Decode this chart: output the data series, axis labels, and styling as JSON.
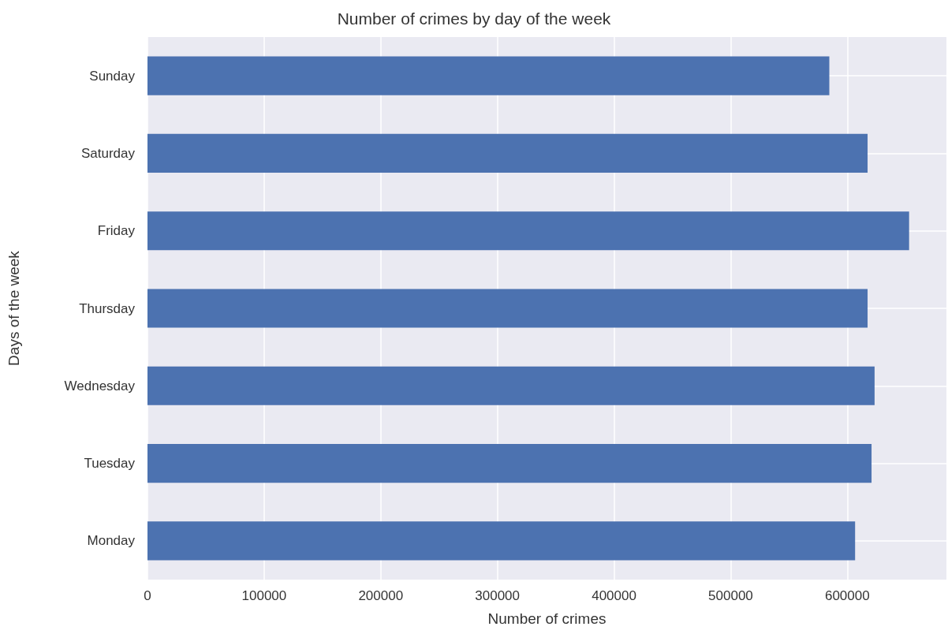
{
  "chart_data": {
    "type": "bar",
    "orientation": "horizontal",
    "title": "Number of crimes by day of the week",
    "xlabel": "Number of crimes",
    "ylabel": "Days of the week",
    "categories": [
      "Sunday",
      "Saturday",
      "Friday",
      "Thursday",
      "Wednesday",
      "Tuesday",
      "Monday"
    ],
    "values": [
      584600,
      617400,
      653000,
      617400,
      623400,
      620800,
      606700
    ],
    "color": "#4c72b0",
    "xlim": [
      0,
      685000
    ],
    "xticks": [
      0,
      100000,
      200000,
      300000,
      400000,
      500000,
      600000
    ],
    "grid": true
  }
}
